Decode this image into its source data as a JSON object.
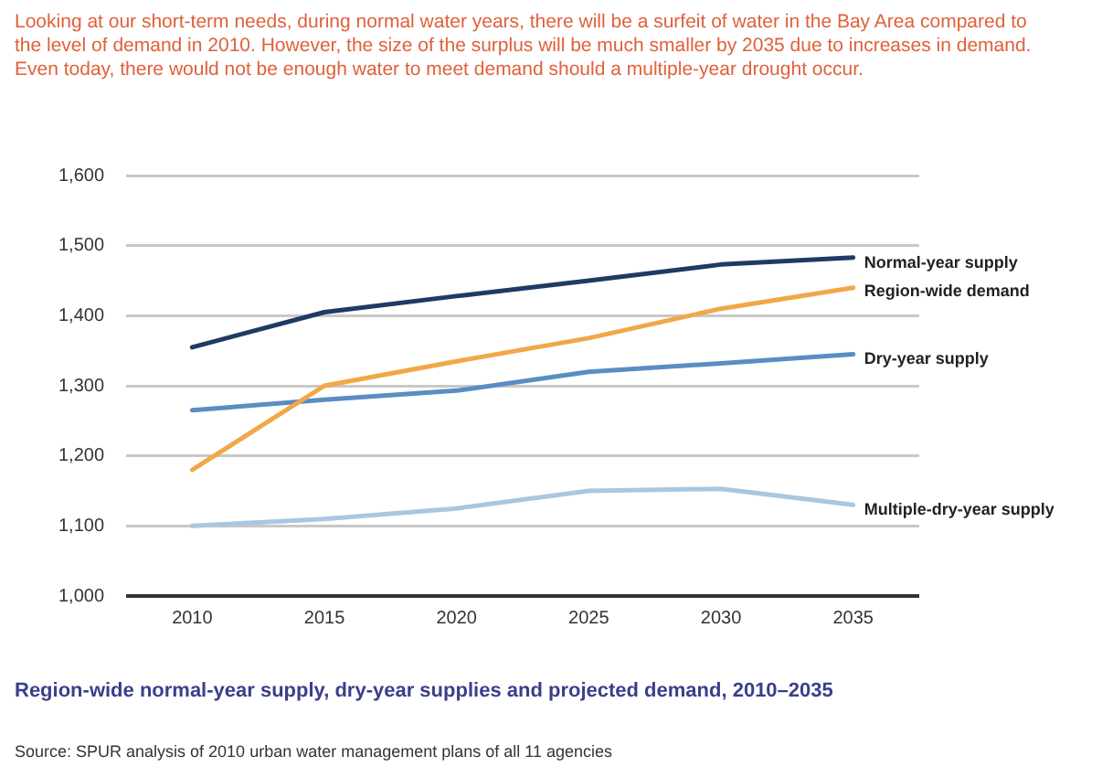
{
  "chart_data": {
    "type": "line",
    "title": "Looking at our short-term needs, during normal water years, there will be a surfeit of water in the Bay Area compared to the level of demand in 2010. However, the size of the surplus will be much smaller by 2035 due to increases in demand. Even today, there would not be enough water to meet demand should a multiple-year drought occur.",
    "categories": [
      "2010",
      "2015",
      "2020",
      "2025",
      "2030",
      "2035"
    ],
    "series": [
      {
        "name": "Normal-year supply",
        "color": "#1f3a64",
        "values": [
          1355,
          1405,
          1428,
          1450,
          1473,
          1483
        ]
      },
      {
        "name": "Region-wide demand",
        "color": "#f0a848",
        "values": [
          1180,
          1300,
          1335,
          1368,
          1410,
          1440
        ]
      },
      {
        "name": "Dry-year supply",
        "color": "#5b8cc4",
        "values": [
          1265,
          1280,
          1293,
          1320,
          1332,
          1345
        ]
      },
      {
        "name": "Multiple-dry-year supply",
        "color": "#a9c7e0",
        "values": [
          1100,
          1110,
          1125,
          1150,
          1153,
          1130
        ]
      }
    ],
    "ylim": [
      1000,
      1600
    ],
    "yticks": [
      {
        "value": 1000,
        "label": "1,000"
      },
      {
        "value": 1100,
        "label": "1,100"
      },
      {
        "value": 1200,
        "label": "1,200"
      },
      {
        "value": 1300,
        "label": "1,300"
      },
      {
        "value": 1400,
        "label": "1,400"
      },
      {
        "value": 1500,
        "label": "1,500"
      },
      {
        "value": 1600,
        "label": "1,600"
      }
    ],
    "grid": "y",
    "legend": false,
    "marker": "none",
    "line_style": "solid",
    "annotations": [
      "Region-wide normal-year supply, dry-year supplies and projected demand, 2010–2035",
      "Source: SPUR analysis of 2010 urban water management plans of all 11 agencies"
    ]
  }
}
